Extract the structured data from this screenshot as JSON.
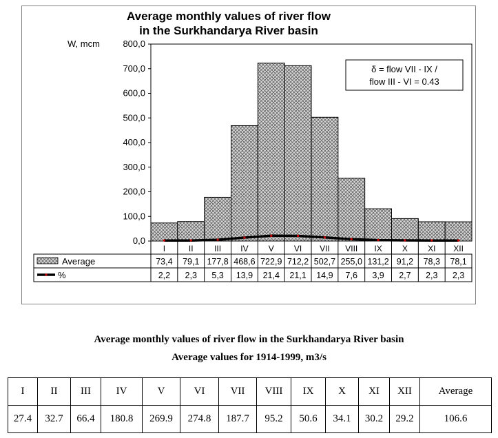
{
  "chart_data": {
    "type": "bar",
    "title": "Average monthly values of river flow in the Surkhandarya River basin",
    "title_lines": [
      "Average monthly values of river flow",
      "in the Surkhandarya River basin"
    ],
    "ylabel": "W, mcm",
    "ylim": [
      0,
      800
    ],
    "ytick_values": [
      0,
      100,
      200,
      300,
      400,
      500,
      600,
      700,
      800
    ],
    "ytick_labels": [
      "0,0",
      "100,0",
      "200,0",
      "300,0",
      "400,0",
      "500,0",
      "600,0",
      "700,0",
      "800,0"
    ],
    "categories": [
      "I",
      "II",
      "III",
      "IV",
      "V",
      "VI",
      "VII",
      "VIII",
      "IX",
      "X",
      "XI",
      "XII"
    ],
    "series": [
      {
        "name": "Average",
        "type": "bar",
        "values": [
          73.4,
          79.1,
          177.8,
          468.6,
          722.9,
          712.2,
          502.7,
          255.0,
          131.2,
          91.2,
          78.3,
          78.1
        ],
        "labels": [
          "73,4",
          "79,1",
          "177,8",
          "468,6",
          "722,9",
          "712,2",
          "502,7",
          "255,0",
          "131,2",
          "91,2",
          "78,3",
          "78,1"
        ]
      },
      {
        "name": "%",
        "type": "line",
        "values": [
          2.2,
          2.3,
          5.3,
          13.9,
          21.4,
          21.1,
          14.9,
          7.6,
          3.9,
          2.7,
          2.3,
          2.3
        ],
        "labels": [
          "2,2",
          "2,3",
          "5,3",
          "13,9",
          "21,4",
          "21,1",
          "14,9",
          "7,6",
          "3,9",
          "2,7",
          "2,3",
          "2,3"
        ]
      }
    ],
    "annotation": [
      "δ =  flow VII - IX /",
      "flow III - VI = 0.43"
    ],
    "grid": false,
    "colors": {
      "bar_fill": "#d8d8d8",
      "bar_hatch": "#606060",
      "line": "#000000",
      "marker": "#cc0000",
      "frame": "#808080"
    }
  },
  "table": {
    "title": "Average monthly values of river flow in the Surkhandarya River basin",
    "subtitle": "Average values for 1914-1999, m3/s",
    "headers": [
      "I",
      "II",
      "III",
      "IV",
      "V",
      "VI",
      "VII",
      "VIII",
      "IX",
      "X",
      "XI",
      "XII",
      "Average"
    ],
    "values": [
      "27.4",
      "32.7",
      "66.4",
      "180.8",
      "269.9",
      "274.8",
      "187.7",
      "95.2",
      "50.6",
      "34.1",
      "30.2",
      "29.2",
      "106.6"
    ]
  }
}
